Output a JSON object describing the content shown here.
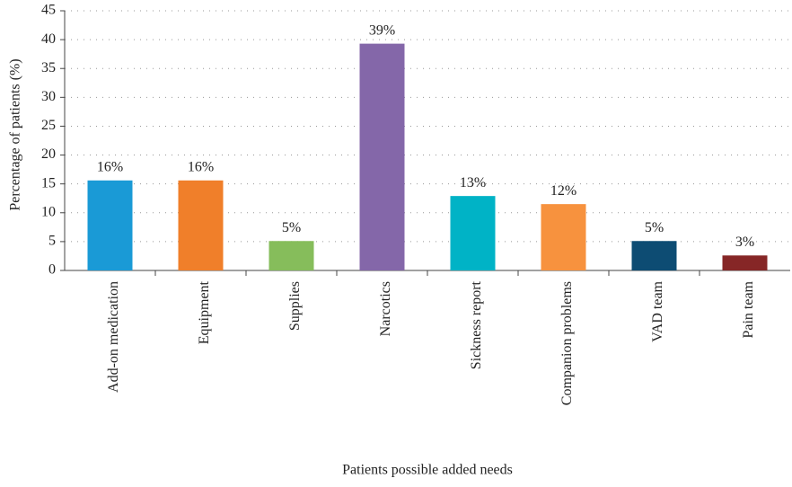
{
  "chart_data": {
    "type": "bar",
    "x_label": "Patients possible added needs",
    "y_label": "Percentage of patients (%)",
    "categories": [
      "Add-on medication",
      "Equipment",
      "Supplies",
      "Narcotics",
      "Sickness report",
      "Companion problems",
      "VAD team",
      "Pain team"
    ],
    "values": [
      15.6,
      15.6,
      5.1,
      39.3,
      12.9,
      11.5,
      5.1,
      2.6
    ],
    "value_labels": [
      "16%",
      "16%",
      "5%",
      "39%",
      "13%",
      "12%",
      "5%",
      "3%"
    ],
    "colors": [
      "#1a9ad6",
      "#f07f2a",
      "#86bd5b",
      "#8467a9",
      "#00b3c6",
      "#f7923e",
      "#0d4c73",
      "#862626"
    ],
    "ylim": [
      0,
      45
    ],
    "yticks": [
      0,
      5,
      10,
      15,
      20,
      25,
      30,
      35,
      40,
      45
    ],
    "grid": true
  }
}
